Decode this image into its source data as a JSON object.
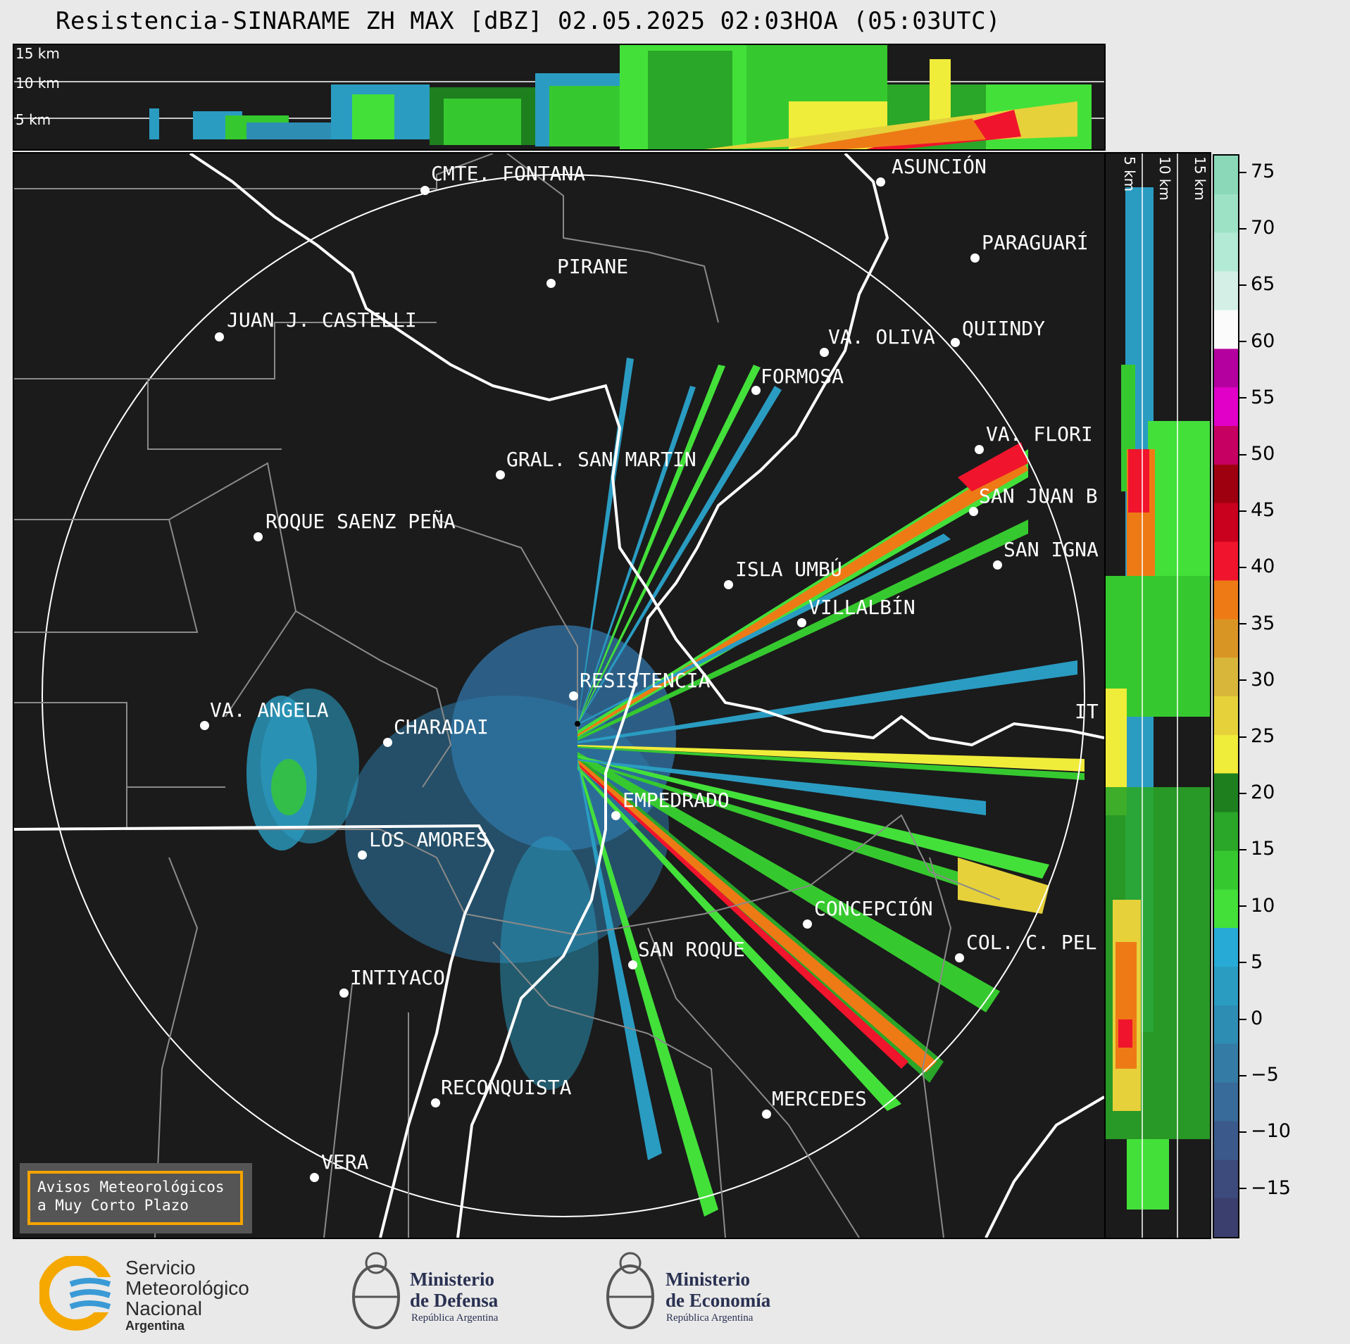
{
  "title": "Resistencia-SINARAME ZH MAX [dBZ] 02.05.2025 02:03HOA (05:03UTC)",
  "top_strip": {
    "labels": [
      "15 km",
      "10 km",
      "5 km"
    ]
  },
  "side_strip": {
    "labels": [
      "5 km",
      "10 km",
      "15 km"
    ]
  },
  "colorbar": {
    "ticks": [
      "75",
      "70",
      "65",
      "60",
      "55",
      "50",
      "45",
      "40",
      "35",
      "30",
      "25",
      "20",
      "15",
      "10",
      "5",
      "0",
      "−5",
      "−10",
      "−15"
    ],
    "colors": [
      "#3b3f6e",
      "#3d4a7c",
      "#3b5a8b",
      "#386b99",
      "#347ca5",
      "#2e8db3",
      "#2a9cc2",
      "#27abd6",
      "#43e03a",
      "#36c92f",
      "#2aa628",
      "#1e7f1f",
      "#f0ec3a",
      "#e6d13a",
      "#d8b63a",
      "#d99524",
      "#ee7a16",
      "#f0142c",
      "#c9001e",
      "#9e0010",
      "#c60062",
      "#e000c8",
      "#b4009e",
      "#fbfbfb",
      "#d4f0e6",
      "#b2ead6",
      "#9ee2c6",
      "#8ad8b8"
    ]
  },
  "cities": [
    {
      "name": "CMTE. FONTANA"
    },
    {
      "name": "ASUNCIÓN"
    },
    {
      "name": "PIRANE"
    },
    {
      "name": "PARAGUARÍ"
    },
    {
      "name": "JUAN J. CASTELLI"
    },
    {
      "name": "VA. OLIVA"
    },
    {
      "name": "QUIINDY"
    },
    {
      "name": "FORMOSA"
    },
    {
      "name": "VA. FLORI"
    },
    {
      "name": "GRAL. SAN MARTIN"
    },
    {
      "name": "SAN JUAN B"
    },
    {
      "name": "ROQUE SAENZ PEÑA"
    },
    {
      "name": "SAN IGNA"
    },
    {
      "name": "ISLA UMBÚ"
    },
    {
      "name": "VILLALBÍN"
    },
    {
      "name": "RESISTENCIA"
    },
    {
      "name": "VA. ANGELA"
    },
    {
      "name": "CHARADAI"
    },
    {
      "name": "IT"
    },
    {
      "name": "EMPEDRADO"
    },
    {
      "name": "LOS AMORES"
    },
    {
      "name": "CONCEPCIÓN"
    },
    {
      "name": "COL. C. PEL"
    },
    {
      "name": "SAN ROQUE"
    },
    {
      "name": "INTIYACO"
    },
    {
      "name": "RECONQUISTA"
    },
    {
      "name": "MERCEDES"
    },
    {
      "name": "VERA"
    }
  ],
  "avisos": {
    "line1": "Avisos Meteorológicos",
    "line2": "a Muy Corto Plazo"
  },
  "logos": {
    "smn": {
      "line1": "Servicio",
      "line2": "Meteorológico",
      "line3": "Nacional",
      "line4": "Argentina"
    },
    "defensa": {
      "line1": "Ministerio",
      "line2": "de Defensa",
      "sub": "República Argentina"
    },
    "economia": {
      "line1": "Ministerio",
      "line2": "de Economía",
      "sub": "República Argentina"
    }
  }
}
